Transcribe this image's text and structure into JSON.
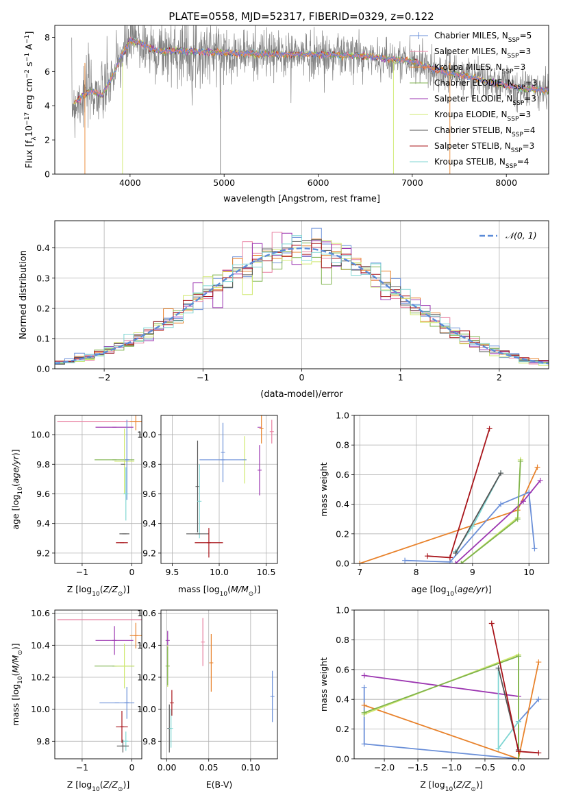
{
  "title": "PLATE=0558, MJD=52317, FIBERID=0329, z=0.122",
  "colors": {
    "chabrier_miles": "#6a8fd8",
    "salpeter_miles": "#e87fa0",
    "kroupa_miles": "#e8822b",
    "chabrier_elodie": "#7fb34d",
    "salpeter_elodie": "#9b35b0",
    "kroupa_elodie": "#cfe86f",
    "chabrier_stelib": "#555555",
    "salpeter_stelib": "#a8141a",
    "kroupa_stelib": "#7fd6d3",
    "data": "#808080",
    "normal": "#5b8bd8"
  },
  "chart_data": [
    {
      "id": "spectrum",
      "type": "line",
      "xlabel": "wavelength [Angstrom, rest frame]",
      "ylabel": "Flux [f",
      "xlim": [
        3200,
        8450
      ],
      "ylim": [
        0,
        8.7
      ],
      "xticks": [
        4000,
        5000,
        6000,
        7000,
        8000
      ],
      "yticks": [
        0,
        2,
        4,
        6,
        8
      ],
      "grid": false,
      "legend_position": "right",
      "series": [
        {
          "name": "Chabrier MILES, N",
          "suffix": "=5"
        },
        {
          "name": "Salpeter MILES, N",
          "suffix": "=3"
        },
        {
          "name": "Kroupa MILES, N",
          "suffix": "=3"
        },
        {
          "name": "Chabrier ELODIE, N",
          "suffix": "=3"
        },
        {
          "name": "Salpeter ELODIE, N",
          "suffix": "=3"
        },
        {
          "name": "Kroupa ELODIE, N",
          "suffix": "=3"
        },
        {
          "name": "Chabrier STELIB, N",
          "suffix": "=4"
        },
        {
          "name": "Salpeter STELIB, N",
          "suffix": "=3"
        },
        {
          "name": "Kroupa STELIB, N",
          "suffix": "=4"
        }
      ],
      "model_shape": {
        "x": [
          3400,
          3500,
          3600,
          3700,
          3800,
          3900,
          4000,
          4100,
          4200,
          4300,
          4500,
          5000,
          5500,
          6000,
          6500,
          7000,
          7200,
          7400,
          7600,
          7800,
          8000,
          8200,
          8400
        ],
        "y": [
          4.1,
          4.6,
          4.9,
          4.6,
          5.5,
          6.8,
          7.8,
          7.7,
          7.4,
          7.2,
          7.2,
          7.1,
          7.0,
          7.0,
          6.9,
          6.6,
          6.2,
          5.9,
          5.7,
          5.4,
          5.2,
          5.0,
          4.9
        ]
      }
    },
    {
      "id": "residuals",
      "type": "line",
      "xlabel": "(data-model)/error",
      "ylabel": "Normed distribution",
      "xlim": [
        -2.5,
        2.5
      ],
      "ylim": [
        0,
        0.49
      ],
      "xticks": [
        -2,
        -1,
        0,
        1,
        2
      ],
      "yticks": [
        0.0,
        0.1,
        0.2,
        0.3,
        0.4
      ],
      "grid": true,
      "legend_position": "upper right",
      "normal_label": "𝒩(0, 1)",
      "bin_width": 0.1
    },
    {
      "id": "z_age",
      "type": "scatter",
      "xlabel": "Z [log",
      "ylabel": "age  [log",
      "xlim": [
        -1.55,
        0.2
      ],
      "ylim": [
        9.13,
        10.13
      ],
      "xticks": [
        -1,
        0
      ],
      "yticks": [
        9.2,
        9.4,
        9.6,
        9.8,
        10.0
      ],
      "grid": true,
      "points": [
        {
          "series": "salpeter_miles",
          "x": -0.35,
          "xerr": 1.15,
          "y": 10.09,
          "yerr": 0.0
        },
        {
          "series": "kroupa_miles",
          "x": 0.08,
          "xerr": 0.12,
          "y": 10.09,
          "yerr": 0.06
        },
        {
          "series": "salpeter_elodie",
          "x": -0.35,
          "xerr": 0.38,
          "y": 10.05,
          "yerr": 0.0
        },
        {
          "series": "chabrier_elodie",
          "x": -0.35,
          "xerr": 0.4,
          "y": 9.83,
          "yerr": 0.0
        },
        {
          "series": "kroupa_elodie",
          "x": -0.15,
          "xerr": 0.2,
          "y": 9.82,
          "yerr": 0.22
        },
        {
          "series": "chabrier_miles",
          "x": -0.1,
          "xerr": 0.05,
          "y": 9.83,
          "yerr": 0.27
        },
        {
          "series": "chabrier_stelib",
          "x": -0.18,
          "xerr": 0.0,
          "y": 9.8,
          "yerr": 0.0
        },
        {
          "series": "kroupa_stelib",
          "x": -0.12,
          "xerr": 0.05,
          "y": 9.6,
          "yerr": 0.18
        },
        {
          "series": "chabrier_stelib",
          "x": -0.15,
          "xerr": 0.1,
          "y": 9.33,
          "yerr": 0.0
        },
        {
          "series": "salpeter_stelib",
          "x": -0.2,
          "xerr": 0.12,
          "y": 9.27,
          "yerr": 0.0
        }
      ]
    },
    {
      "id": "mass_age",
      "type": "scatter",
      "xlabel": "mass [log",
      "ylabel": "",
      "xlim": [
        9.38,
        10.62
      ],
      "ylim": [
        9.13,
        10.13
      ],
      "xticks": [
        9.5,
        10.0,
        10.5
      ],
      "yticks": [
        9.2,
        9.4,
        9.6,
        9.8,
        10.0
      ],
      "grid": true,
      "points": [
        {
          "series": "salpeter_miles",
          "x": 10.56,
          "xerr": 0.0,
          "y": 10.02,
          "yerr": 0.08
        },
        {
          "series": "salpeter_elodie",
          "x": 10.43,
          "xerr": 0.0,
          "y": 10.05,
          "yerr": 0.0
        },
        {
          "series": "kroupa_miles",
          "x": 10.45,
          "xerr": 0.0,
          "y": 10.04,
          "yerr": 0.1
        },
        {
          "series": "chabrier_miles",
          "x": 10.04,
          "xerr": 0.0,
          "y": 9.88,
          "yerr": 0.2
        },
        {
          "series": "kroupa_elodie",
          "x": 10.27,
          "xerr": 0.0,
          "y": 9.83,
          "yerr": 0.16
        },
        {
          "series": "chabrier_miles",
          "x": 10.04,
          "xerr": 0.25,
          "y": 9.83,
          "yerr": 0.0
        },
        {
          "series": "salpeter_elodie",
          "x": 10.43,
          "xerr": 0.0,
          "y": 9.76,
          "yerr": 0.17
        },
        {
          "series": "chabrier_stelib",
          "x": 9.77,
          "xerr": 0.0,
          "y": 9.65,
          "yerr": 0.31
        },
        {
          "series": "kroupa_stelib",
          "x": 9.79,
          "xerr": 0.0,
          "y": 9.55,
          "yerr": 0.25
        },
        {
          "series": "chabrier_stelib",
          "x": 9.77,
          "xerr": 0.12,
          "y": 9.33,
          "yerr": 0.0
        },
        {
          "series": "salpeter_stelib",
          "x": 9.89,
          "xerr": 0.15,
          "y": 9.27,
          "yerr": 0.1
        }
      ]
    },
    {
      "id": "age_weight",
      "type": "line",
      "xlabel": "age  [log",
      "ylabel": "mass weight",
      "xlim": [
        6.9,
        10.35
      ],
      "ylim": [
        0,
        1.0
      ],
      "xticks": [
        7,
        8,
        9,
        10
      ],
      "yticks": [
        0.0,
        0.2,
        0.4,
        0.6,
        0.8,
        1.0
      ],
      "grid": true,
      "series": [
        {
          "series": "kroupa_miles",
          "x": [
            7.0,
            9.8,
            10.15
          ],
          "y": [
            0.0,
            0.36,
            0.65
          ]
        },
        {
          "series": "chabrier_miles",
          "x": [
            7.8,
            8.6,
            9.5,
            10.0,
            10.1
          ],
          "y": [
            0.02,
            0.01,
            0.4,
            0.48,
            0.1
          ]
        },
        {
          "series": "salpeter_stelib",
          "x": [
            8.2,
            8.6,
            9.3
          ],
          "y": [
            0.05,
            0.04,
            0.91
          ]
        },
        {
          "series": "kroupa_stelib",
          "x": [
            8.7,
            9.0,
            9.5
          ],
          "y": [
            0.08,
            0.25,
            0.61
          ]
        },
        {
          "series": "chabrier_stelib",
          "x": [
            8.7,
            9.5
          ],
          "y": [
            0.07,
            0.61
          ]
        },
        {
          "series": "salpeter_elodie",
          "x": [
            8.7,
            9.9,
            10.2
          ],
          "y": [
            0.0,
            0.42,
            0.56
          ]
        },
        {
          "series": "kroupa_elodie",
          "x": [
            8.8,
            9.8,
            9.85
          ],
          "y": [
            0.0,
            0.31,
            0.7
          ]
        },
        {
          "series": "chabrier_elodie",
          "x": [
            8.8,
            9.8,
            9.85
          ],
          "y": [
            0.0,
            0.3,
            0.69
          ]
        }
      ]
    },
    {
      "id": "z_mass",
      "type": "scatter",
      "xlabel": "Z [log",
      "ylabel": "mass [log",
      "xlim": [
        -1.55,
        0.2
      ],
      "ylim": [
        9.69,
        10.62
      ],
      "xticks": [
        -1,
        0
      ],
      "yticks": [
        9.8,
        10.0,
        10.2,
        10.4,
        10.6
      ],
      "grid": true,
      "points": [
        {
          "series": "salpeter_miles",
          "x": -0.35,
          "xerr": 1.15,
          "y": 10.56,
          "yerr": 0.0
        },
        {
          "series": "kroupa_miles",
          "x": 0.08,
          "xerr": 0.12,
          "y": 10.46,
          "yerr": 0.08
        },
        {
          "series": "salpeter_elodie",
          "x": -0.35,
          "xerr": 0.38,
          "y": 10.43,
          "yerr": 0.09
        },
        {
          "series": "chabrier_elodie",
          "x": -0.35,
          "xerr": 0.4,
          "y": 10.27,
          "yerr": 0.0
        },
        {
          "series": "kroupa_elodie",
          "x": -0.15,
          "xerr": 0.2,
          "y": 10.27,
          "yerr": 0.14
        },
        {
          "series": "chabrier_miles",
          "x": -0.1,
          "xerr": 0.05,
          "y": 10.04,
          "yerr": 0.1
        },
        {
          "series": "chabrier_miles",
          "x": -0.3,
          "xerr": 0.35,
          "y": 10.04,
          "yerr": 0.0
        },
        {
          "series": "salpeter_stelib",
          "x": -0.2,
          "xerr": 0.12,
          "y": 9.89,
          "yerr": 0.1
        },
        {
          "series": "kroupa_stelib",
          "x": -0.12,
          "xerr": 0.05,
          "y": 9.8,
          "yerr": 0.06
        },
        {
          "series": "chabrier_stelib",
          "x": -0.18,
          "xerr": 0.12,
          "y": 9.77,
          "yerr": 0.04
        }
      ]
    },
    {
      "id": "ebv_mass",
      "type": "scatter",
      "xlabel": "E(B-V)",
      "ylabel": "",
      "xlim": [
        -0.007,
        0.132
      ],
      "ylim": [
        9.69,
        10.62
      ],
      "xticks": [
        0.0,
        0.05,
        0.1
      ],
      "yticks": [
        9.8,
        10.0,
        10.2,
        10.4,
        10.6
      ],
      "grid": true,
      "points": [
        {
          "series": "salpeter_elodie",
          "x": 0.001,
          "y": 10.43,
          "yerr": 0.06
        },
        {
          "series": "kroupa_elodie",
          "x": 0.001,
          "y": 10.27,
          "yerr": 0.13
        },
        {
          "series": "chabrier_elodie",
          "x": 0.001,
          "y": 10.27,
          "yerr": 0.12
        },
        {
          "series": "chabrier_stelib",
          "x": 0.003,
          "y": 9.88,
          "yerr": 0.15
        },
        {
          "series": "kroupa_stelib",
          "x": 0.005,
          "y": 9.88,
          "yerr": 0.12
        },
        {
          "series": "salpeter_stelib",
          "x": 0.006,
          "y": 10.04,
          "yerr": 0.08
        },
        {
          "series": "salpeter_miles",
          "x": 0.043,
          "y": 10.42,
          "yerr": 0.15
        },
        {
          "series": "kroupa_miles",
          "x": 0.053,
          "y": 10.29,
          "yerr": 0.18
        },
        {
          "series": "chabrier_miles",
          "x": 0.126,
          "y": 10.08,
          "yerr": 0.16
        }
      ]
    },
    {
      "id": "z_weight",
      "type": "line",
      "xlabel": "Z [log",
      "ylabel": "mass weight",
      "xlim": [
        -2.45,
        0.45
      ],
      "ylim": [
        0,
        1.0
      ],
      "xticks": [
        -2.0,
        -1.5,
        -1.0,
        -0.5,
        0.0
      ],
      "yticks": [
        0.0,
        0.2,
        0.4,
        0.6,
        0.8,
        1.0
      ],
      "grid": true,
      "series": [
        {
          "series": "chabrier_miles",
          "x": [
            -2.3,
            -2.3,
            0.0,
            0.0,
            0.3
          ],
          "y": [
            0.48,
            0.1,
            0.0,
            0.25,
            0.4
          ]
        },
        {
          "series": "kroupa_miles",
          "x": [
            -2.3,
            0.0,
            0.3
          ],
          "y": [
            0.36,
            0.0,
            0.65
          ]
        },
        {
          "series": "salpeter_elodie",
          "x": [
            -2.3,
            0.0
          ],
          "y": [
            0.56,
            0.42
          ]
        },
        {
          "series": "kroupa_elodie",
          "x": [
            -2.3,
            0.0,
            0.0
          ],
          "y": [
            0.3,
            0.7,
            0.0
          ]
        },
        {
          "series": "chabrier_elodie",
          "x": [
            -2.3,
            0.0,
            0.0
          ],
          "y": [
            0.31,
            0.69,
            0.0
          ]
        },
        {
          "series": "kroupa_stelib",
          "x": [
            -0.3,
            -0.3,
            0.0
          ],
          "y": [
            0.61,
            0.07,
            0.25
          ]
        },
        {
          "series": "chabrier_stelib",
          "x": [
            -0.3,
            0.0
          ],
          "y": [
            0.61,
            0.06
          ]
        },
        {
          "series": "salpeter_stelib",
          "x": [
            -0.4,
            0.0,
            0.3
          ],
          "y": [
            0.91,
            0.05,
            0.04
          ]
        }
      ]
    }
  ]
}
